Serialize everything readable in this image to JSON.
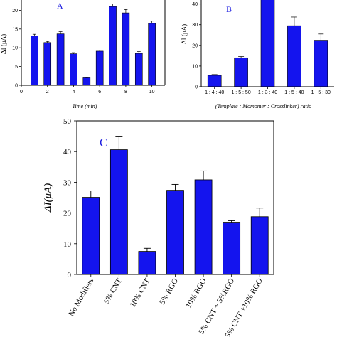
{
  "colors": {
    "bar": "#1414ee",
    "axis": "#000000",
    "letter": "#1f1fe0"
  },
  "chart_data": [
    {
      "panel": "A",
      "type": "bar",
      "x": [
        1,
        2,
        3,
        4,
        5,
        6,
        7,
        8,
        9,
        10
      ],
      "values": [
        13.2,
        11.4,
        13.7,
        8.4,
        2.0,
        9.1,
        21.0,
        19.3,
        8.5,
        16.5
      ],
      "errors": [
        0.4,
        0.3,
        0.6,
        0.3,
        0.1,
        0.3,
        0.7,
        0.9,
        0.5,
        0.6
      ],
      "xlabel": "Time (min)",
      "ylabel": "ΔI (μA)",
      "xlim": [
        0,
        11
      ],
      "ylim": [
        0,
        20
      ],
      "xticks": [
        "0",
        "2",
        "4",
        "6",
        "8",
        "10"
      ],
      "yticks": [
        "0",
        "5",
        "10",
        "15",
        "20"
      ],
      "grid": false
    },
    {
      "panel": "B",
      "type": "bar",
      "categories": [
        "1 : 4 : 40",
        "1 : 5 : 50",
        "1 : 3 : 40",
        "1 : 5 : 40",
        "1 : 5 : 30"
      ],
      "values": [
        5.5,
        14.0,
        48.0,
        29.5,
        22.5
      ],
      "errors": [
        0.4,
        0.6,
        3.5,
        4.2,
        3.0
      ],
      "xlabel": "(Template : Momomer : Crosslinker) ratio",
      "ylabel": "ΔI (μA)",
      "ylim": [
        0,
        45
      ],
      "yticks": [
        "0",
        "10",
        "20",
        "30",
        "40"
      ],
      "grid": false
    },
    {
      "panel": "C",
      "type": "bar",
      "categories": [
        "No Modifiers",
        "5% CNT",
        "10% CNT",
        "5% RGO",
        "10% RGO",
        "5% CNT + 5%RGO",
        "5% CNT +10% RGO"
      ],
      "values": [
        25.1,
        40.6,
        7.5,
        27.4,
        30.8,
        17.0,
        18.8
      ],
      "errors": [
        2.1,
        4.4,
        1.0,
        1.9,
        2.9,
        0.5,
        2.8
      ],
      "xlabel": "",
      "ylabel": "ΔI(μA)",
      "ylim": [
        0,
        50
      ],
      "yticks": [
        "0",
        "10",
        "20",
        "30",
        "40",
        "50"
      ],
      "grid": false
    }
  ]
}
